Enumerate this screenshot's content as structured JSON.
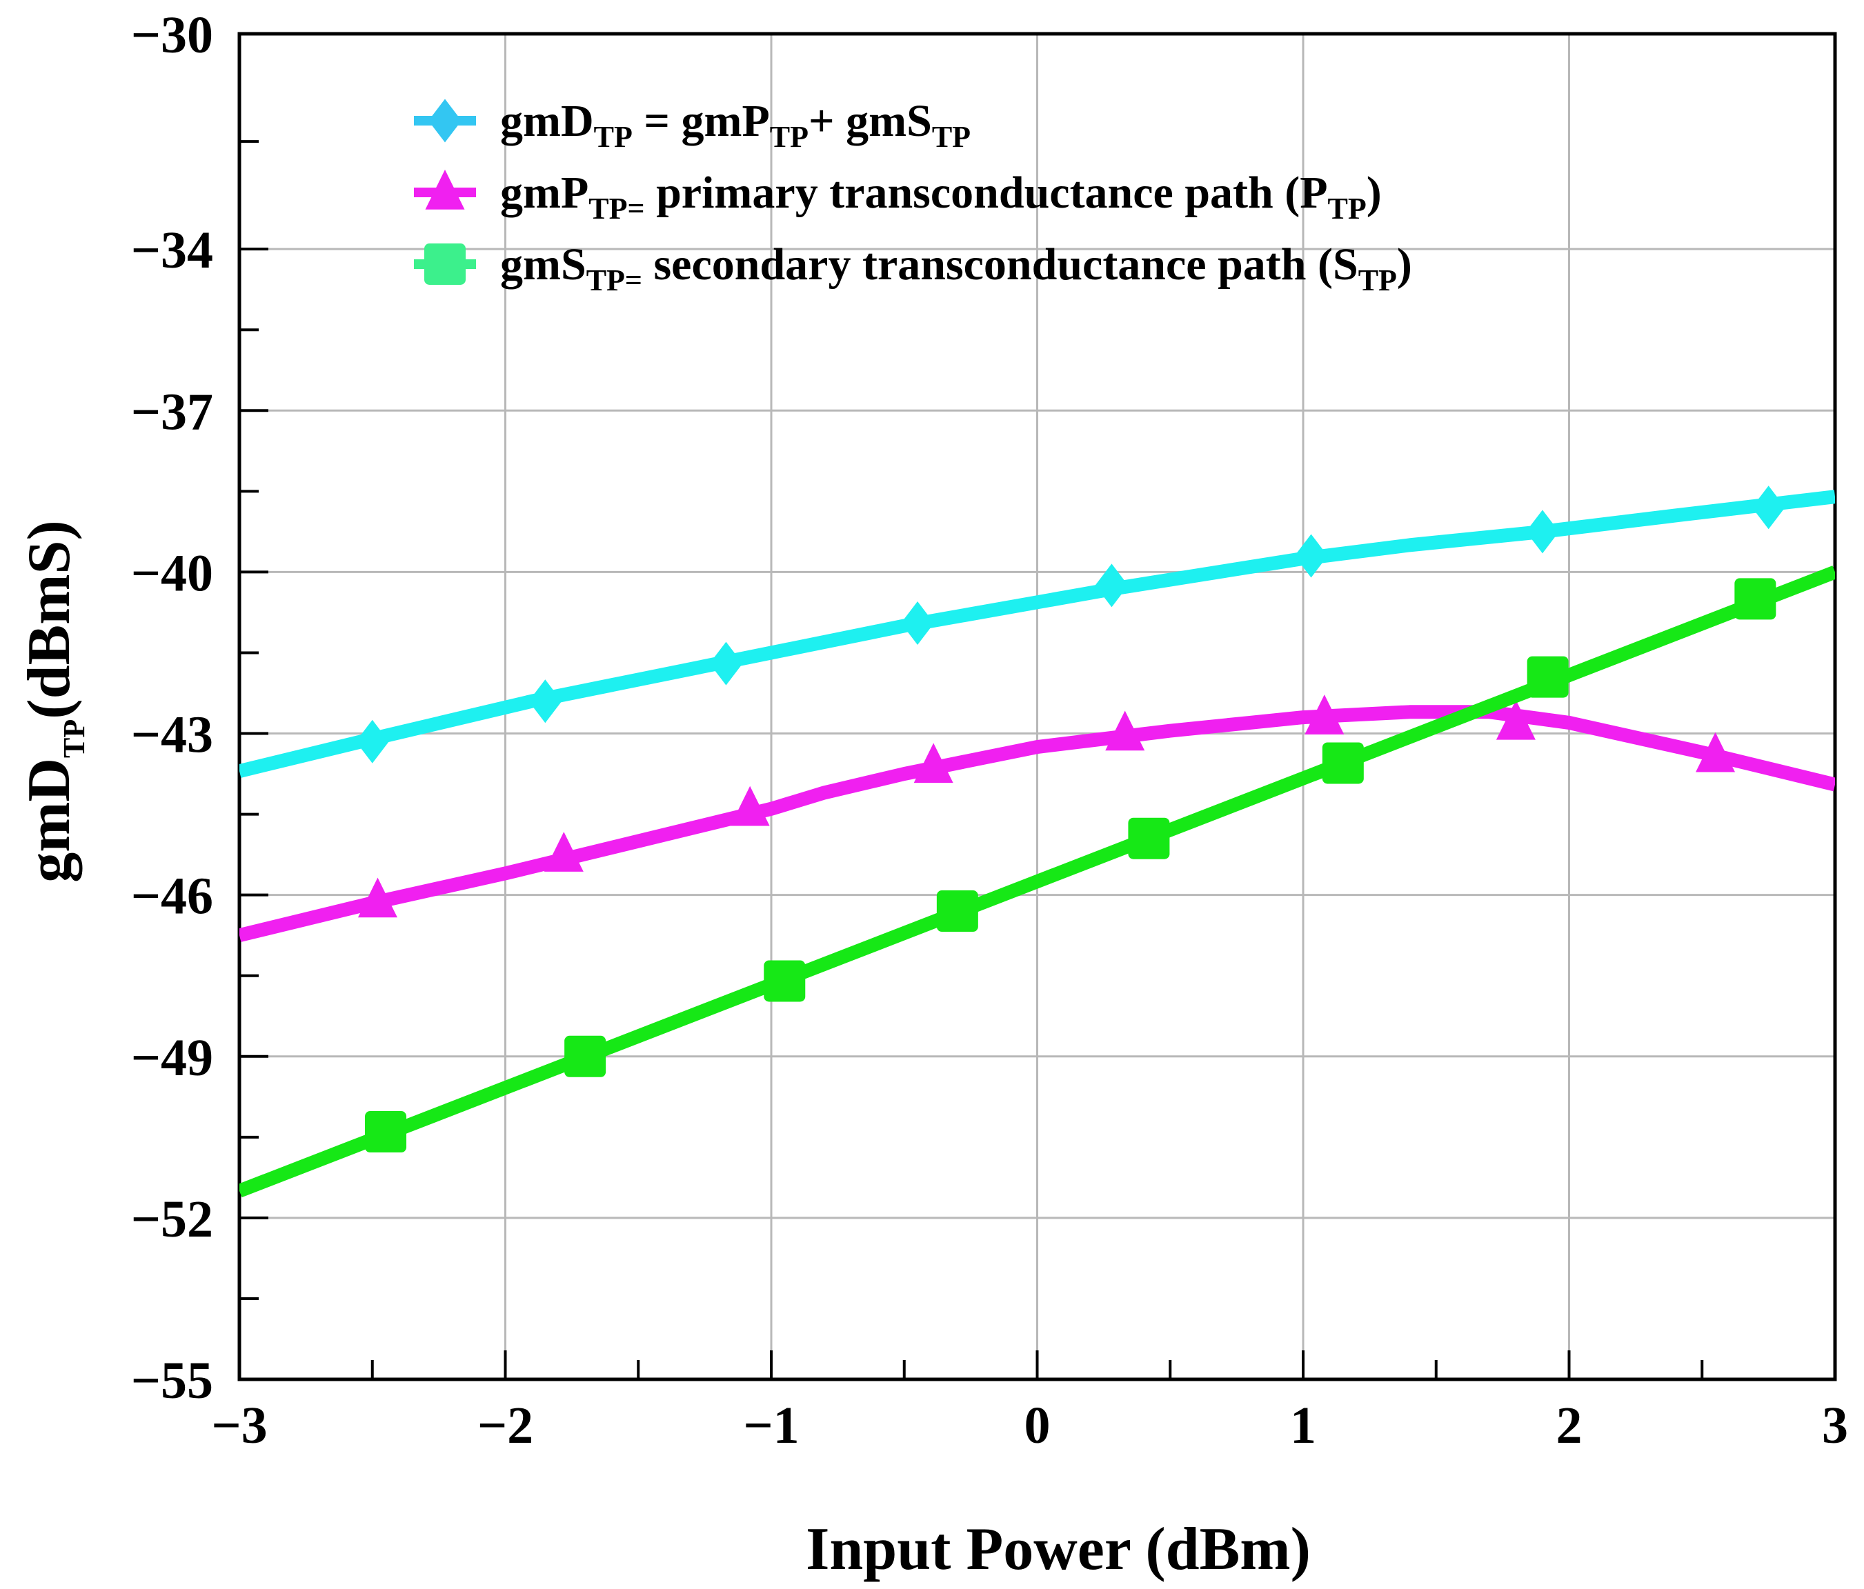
{
  "chart_data": {
    "type": "line",
    "xlabel": "Input Power (dBm)",
    "ylabel": {
      "main": "gmD",
      "sub": "TP",
      "tail": "(dBmS)"
    },
    "xlim": [
      -3,
      3
    ],
    "ylim": [
      -55,
      -30
    ],
    "x_ticks": [
      -3,
      -2,
      -1,
      0,
      1,
      2,
      3
    ],
    "x_tick_labels": [
      "−3",
      "−2",
      "−1",
      "0",
      "1",
      "2",
      "3"
    ],
    "y_ticks": [
      -30,
      -34,
      -37,
      -40,
      -43,
      -46,
      -49,
      -52,
      -55
    ],
    "y_tick_labels": [
      "−30",
      "−34",
      "−37",
      "−40",
      "−43",
      "−46",
      "−49",
      "−52",
      "−55"
    ],
    "grid": true,
    "legend_position": "top-center",
    "series": [
      {
        "name": "gmD_TP",
        "color": "#1ef0f0",
        "marker": "diamond",
        "legend_marker_color": "#33c6f2",
        "legend": [
          {
            "t": "gmD",
            "sub": false
          },
          {
            "t": "TP",
            "sub": true
          },
          {
            "t": " = gmP",
            "sub": false
          },
          {
            "t": "TP",
            "sub": true
          },
          {
            "t": "+ gmS",
            "sub": false
          },
          {
            "t": "TP",
            "sub": true
          }
        ],
        "line_x": [
          -3,
          -2.5,
          -1.9,
          -1.2,
          -0.5,
          0.3,
          1.0,
          1.4,
          1.9,
          2.4,
          3.0
        ],
        "line_y": [
          -43.7,
          -43.1,
          -42.4,
          -41.7,
          -41.0,
          -40.3,
          -39.75,
          -39.5,
          -39.25,
          -38.95,
          -38.6
        ],
        "points_x": [
          -2.5,
          -1.85,
          -1.17,
          -0.45,
          0.28,
          1.03,
          1.9,
          2.75
        ],
        "points_y": [
          -43.15,
          -42.4,
          -41.7,
          -40.95,
          -40.25,
          -39.7,
          -39.25,
          -38.8
        ]
      },
      {
        "name": "gmP_TP",
        "color": "#f020f0",
        "marker": "triangle",
        "legend_marker_color": "#f020f0",
        "legend": [
          {
            "t": "gmP",
            "sub": false
          },
          {
            "t": "TP=",
            "sub": true
          },
          {
            "t": " primary transconductance path (P",
            "sub": false
          },
          {
            "t": "TP",
            "sub": true
          },
          {
            "t": ")",
            "sub": false
          }
        ],
        "line_x": [
          -3,
          -2.5,
          -2.0,
          -1.5,
          -1.0,
          -0.8,
          -0.5,
          0,
          0.5,
          0.8,
          1.0,
          1.4,
          1.7,
          2.0,
          2.5,
          3.0
        ],
        "line_y": [
          -46.75,
          -46.15,
          -45.6,
          -45.0,
          -44.4,
          -44.1,
          -43.75,
          -43.25,
          -42.95,
          -42.8,
          -42.7,
          -42.6,
          -42.6,
          -42.8,
          -43.35,
          -43.95
        ],
        "points_x": [
          -2.48,
          -1.78,
          -1.08,
          -0.39,
          0.33,
          1.08,
          1.8,
          2.55
        ],
        "points_y": [
          -46.1,
          -45.25,
          -44.4,
          -43.6,
          -43.0,
          -42.7,
          -42.8,
          -43.4
        ]
      },
      {
        "name": "gmS_TP",
        "color": "#16e816",
        "marker": "square",
        "legend_marker_color": "#3cf08c",
        "legend": [
          {
            "t": "gmS",
            "sub": false
          },
          {
            "t": "TP=",
            "sub": true
          },
          {
            "t": " secondary transconductance  path (S",
            "sub": false
          },
          {
            "t": "TP",
            "sub": true
          },
          {
            "t": ")",
            "sub": false
          }
        ],
        "line_x": [
          -3,
          3
        ],
        "line_y": [
          -51.5,
          -40.0
        ],
        "points_x": [
          -2.45,
          -1.7,
          -0.95,
          -0.3,
          0.42,
          1.15,
          1.92,
          2.7
        ],
        "points_y": [
          -50.4,
          -49.0,
          -47.6,
          -46.3,
          -44.95,
          -43.55,
          -41.95,
          -40.5
        ]
      }
    ]
  }
}
